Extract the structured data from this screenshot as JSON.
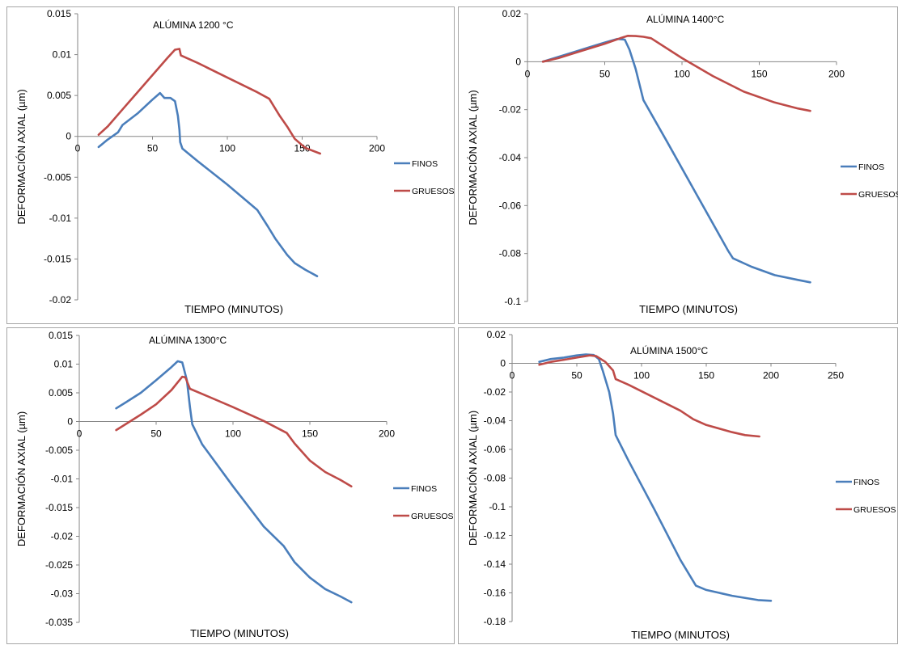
{
  "colors": {
    "finos": "#4a7ebb",
    "gruesos": "#be4b48",
    "axis": "#868686"
  },
  "chart_data": [
    {
      "type": "line",
      "title": "ALÚMINA 1200 °C",
      "xlabel": "TIEMPO (MINUTOS)",
      "ylabel": "DEFORMACIÓN AXIAL (µm)",
      "xlim": [
        0,
        200
      ],
      "ylim": [
        -0.02,
        0.015
      ],
      "xticks": [
        0,
        50,
        100,
        150,
        200
      ],
      "xtick_labels": [
        "0",
        "50",
        "100",
        "150",
        "200"
      ],
      "yticks": [
        0.015,
        0.01,
        0.005,
        0,
        -0.005,
        -0.01,
        -0.015,
        -0.02
      ],
      "ytick_labels": [
        "0.015",
        "0.01",
        "0.005",
        "0",
        "-0.005",
        "-0.01",
        "-0.015",
        "-0.02"
      ],
      "legend_position": "right",
      "series": [
        {
          "name": "FINOS",
          "color": "#4a7ebb",
          "points": [
            [
              14,
              -0.0013
            ],
            [
              20,
              -0.0004
            ],
            [
              27,
              0.0005
            ],
            [
              30,
              0.0014
            ],
            [
              40,
              0.0028
            ],
            [
              50,
              0.0045
            ],
            [
              55,
              0.0053
            ],
            [
              58,
              0.0047
            ],
            [
              62,
              0.0047
            ],
            [
              65,
              0.0043
            ],
            [
              67,
              0.0025
            ],
            [
              68,
              0.0008
            ],
            [
              68.5,
              -0.0007
            ],
            [
              70,
              -0.0015
            ],
            [
              80,
              -0.003
            ],
            [
              100,
              -0.0059
            ],
            [
              120,
              -0.009
            ],
            [
              127,
              -0.011
            ],
            [
              132,
              -0.0125
            ],
            [
              140,
              -0.0145
            ],
            [
              145,
              -0.0155
            ],
            [
              152,
              -0.0163
            ],
            [
              160,
              -0.0171
            ]
          ]
        },
        {
          "name": "GRUESOS",
          "color": "#be4b48",
          "points": [
            [
              14,
              0.0002
            ],
            [
              20,
              0.0012
            ],
            [
              30,
              0.0033
            ],
            [
              40,
              0.0054
            ],
            [
              50,
              0.0075
            ],
            [
              60,
              0.0096
            ],
            [
              65,
              0.0106
            ],
            [
              68,
              0.0107
            ],
            [
              69,
              0.0099
            ],
            [
              80,
              0.009
            ],
            [
              100,
              0.0072
            ],
            [
              120,
              0.0054
            ],
            [
              128,
              0.0046
            ],
            [
              135,
              0.0025
            ],
            [
              140,
              0.0012
            ],
            [
              145,
              -0.0003
            ],
            [
              152,
              -0.0014
            ],
            [
              162,
              -0.0021
            ]
          ]
        }
      ]
    },
    {
      "type": "line",
      "title": "ALÚMINA 1400°C",
      "xlabel": "TIEMPO (MINUTOS)",
      "ylabel": "DEFORMACIÓN AXIAL (µm)",
      "xlim": [
        0,
        200
      ],
      "ylim": [
        -0.1,
        0.02
      ],
      "xticks": [
        0,
        50,
        100,
        150,
        200
      ],
      "xtick_labels": [
        "0",
        "50",
        "100",
        "150",
        "200"
      ],
      "yticks": [
        0.02,
        0,
        -0.02,
        -0.04,
        -0.06,
        -0.08,
        -0.1
      ],
      "ytick_labels": [
        "0.02",
        "0",
        "-0.02",
        "-0.04",
        "-0.06",
        "-0.08",
        "-0.1"
      ],
      "legend_position": "right",
      "series": [
        {
          "name": "FINOS",
          "color": "#4a7ebb",
          "points": [
            [
              10,
              0
            ],
            [
              20,
              0.002
            ],
            [
              30,
              0.004
            ],
            [
              40,
              0.006
            ],
            [
              50,
              0.008
            ],
            [
              58,
              0.0095
            ],
            [
              63,
              0.0092
            ],
            [
              66,
              0.005
            ],
            [
              70,
              -0.003
            ],
            [
              75,
              -0.016
            ],
            [
              90,
              -0.033
            ],
            [
              110,
              -0.056
            ],
            [
              130,
              -0.079
            ],
            [
              133,
              -0.082
            ],
            [
              145,
              -0.0855
            ],
            [
              160,
              -0.089
            ],
            [
              175,
              -0.091
            ],
            [
              183,
              -0.092
            ]
          ]
        },
        {
          "name": "GRUESOS",
          "color": "#be4b48",
          "points": [
            [
              10,
              0
            ],
            [
              20,
              0.0015
            ],
            [
              30,
              0.0035
            ],
            [
              40,
              0.0055
            ],
            [
              50,
              0.0075
            ],
            [
              60,
              0.0098
            ],
            [
              65,
              0.0108
            ],
            [
              70,
              0.0107
            ],
            [
              75,
              0.0104
            ],
            [
              80,
              0.0098
            ],
            [
              100,
              0.0015
            ],
            [
              120,
              -0.006
            ],
            [
              140,
              -0.0125
            ],
            [
              160,
              -0.017
            ],
            [
              175,
              -0.0195
            ],
            [
              183,
              -0.0205
            ]
          ]
        }
      ]
    },
    {
      "type": "line",
      "title": "ALÚMINA 1300°C",
      "xlabel": "TIEMPO (MINUTOS)",
      "ylabel": "DEFORMACIÓN AXIAL (µm)",
      "xlim": [
        0,
        200
      ],
      "ylim": [
        -0.035,
        0.015
      ],
      "xticks": [
        0,
        50,
        100,
        150,
        200
      ],
      "xtick_labels": [
        "0",
        "50",
        "100",
        "150",
        "200"
      ],
      "yticks": [
        0.015,
        0.01,
        0.005,
        0,
        -0.005,
        -0.01,
        -0.015,
        -0.02,
        -0.025,
        -0.03,
        -0.035
      ],
      "ytick_labels": [
        "0.015",
        "0.01",
        "0.005",
        "0",
        "-0.005",
        "-0.01",
        "-0.015",
        "-0.02",
        "-0.025",
        "-0.03",
        "-0.035"
      ],
      "legend_position": "right",
      "series": [
        {
          "name": "FINOS",
          "color": "#4a7ebb",
          "points": [
            [
              24,
              0.0023
            ],
            [
              30,
              0.0033
            ],
            [
              40,
              0.005
            ],
            [
              50,
              0.0072
            ],
            [
              60,
              0.0095
            ],
            [
              64,
              0.0105
            ],
            [
              67,
              0.0103
            ],
            [
              70,
              0.0072
            ],
            [
              72,
              0.0025
            ],
            [
              73,
              0.0005
            ],
            [
              73.5,
              -0.0005
            ],
            [
              80,
              -0.004
            ],
            [
              100,
              -0.0113
            ],
            [
              120,
              -0.0183
            ],
            [
              133,
              -0.0217
            ],
            [
              140,
              -0.0245
            ],
            [
              150,
              -0.0272
            ],
            [
              160,
              -0.0292
            ],
            [
              170,
              -0.0305
            ],
            [
              177,
              -0.0315
            ]
          ]
        },
        {
          "name": "GRUESOS",
          "color": "#be4b48",
          "points": [
            [
              24,
              -0.0015
            ],
            [
              30,
              -0.0005
            ],
            [
              40,
              0.0012
            ],
            [
              50,
              0.003
            ],
            [
              60,
              0.0055
            ],
            [
              67,
              0.0078
            ],
            [
              69,
              0.0077
            ],
            [
              72,
              0.0057
            ],
            [
              80,
              0.0048
            ],
            [
              100,
              0.0025
            ],
            [
              120,
              0.0001
            ],
            [
              135,
              -0.002
            ],
            [
              140,
              -0.0038
            ],
            [
              150,
              -0.0068
            ],
            [
              160,
              -0.0088
            ],
            [
              170,
              -0.0102
            ],
            [
              177,
              -0.0113
            ]
          ]
        }
      ]
    },
    {
      "type": "line",
      "title": "ALÚMINA 1500°C",
      "xlabel": "TIEMPO (MINUTOS)",
      "ylabel": "DEFORMACIÓN AXIAL (µm)",
      "xlim": [
        0,
        250
      ],
      "ylim": [
        -0.18,
        0.02
      ],
      "xticks": [
        0,
        50,
        100,
        150,
        200,
        250
      ],
      "xtick_labels": [
        "0",
        "50",
        "100",
        "150",
        "200",
        "250"
      ],
      "yticks": [
        0.02,
        0,
        -0.02,
        -0.04,
        -0.06,
        -0.08,
        -0.1,
        -0.12,
        -0.14,
        -0.16,
        -0.18
      ],
      "ytick_labels": [
        "0.02",
        "0",
        "-0.02",
        "-0.04",
        "-0.06",
        "-0.08",
        "-0.1",
        "-0.12",
        "-0.14",
        "-0.16",
        "-0.18"
      ],
      "legend_position": "right",
      "series": [
        {
          "name": "FINOS",
          "color": "#4a7ebb",
          "points": [
            [
              21,
              0.001
            ],
            [
              30,
              0.003
            ],
            [
              40,
              0.004
            ],
            [
              50,
              0.0055
            ],
            [
              57,
              0.0062
            ],
            [
              63,
              0.0058
            ],
            [
              67,
              0.003
            ],
            [
              70,
              -0.005
            ],
            [
              75,
              -0.02
            ],
            [
              78,
              -0.035
            ],
            [
              80,
              -0.05
            ],
            [
              90,
              -0.068
            ],
            [
              110,
              -0.102
            ],
            [
              130,
              -0.137
            ],
            [
              142,
              -0.155
            ],
            [
              150,
              -0.158
            ],
            [
              170,
              -0.162
            ],
            [
              190,
              -0.165
            ],
            [
              200,
              -0.1655
            ]
          ]
        },
        {
          "name": "GRUESOS",
          "color": "#be4b48",
          "points": [
            [
              21,
              -0.001
            ],
            [
              30,
              0.001
            ],
            [
              40,
              0.0025
            ],
            [
              50,
              0.004
            ],
            [
              60,
              0.0055
            ],
            [
              65,
              0.005
            ],
            [
              72,
              0.001
            ],
            [
              78,
              -0.005
            ],
            [
              80,
              -0.011
            ],
            [
              90,
              -0.015
            ],
            [
              110,
              -0.024
            ],
            [
              130,
              -0.033
            ],
            [
              140,
              -0.039
            ],
            [
              150,
              -0.043
            ],
            [
              170,
              -0.048
            ],
            [
              180,
              -0.05
            ],
            [
              191,
              -0.051
            ]
          ]
        }
      ]
    }
  ]
}
